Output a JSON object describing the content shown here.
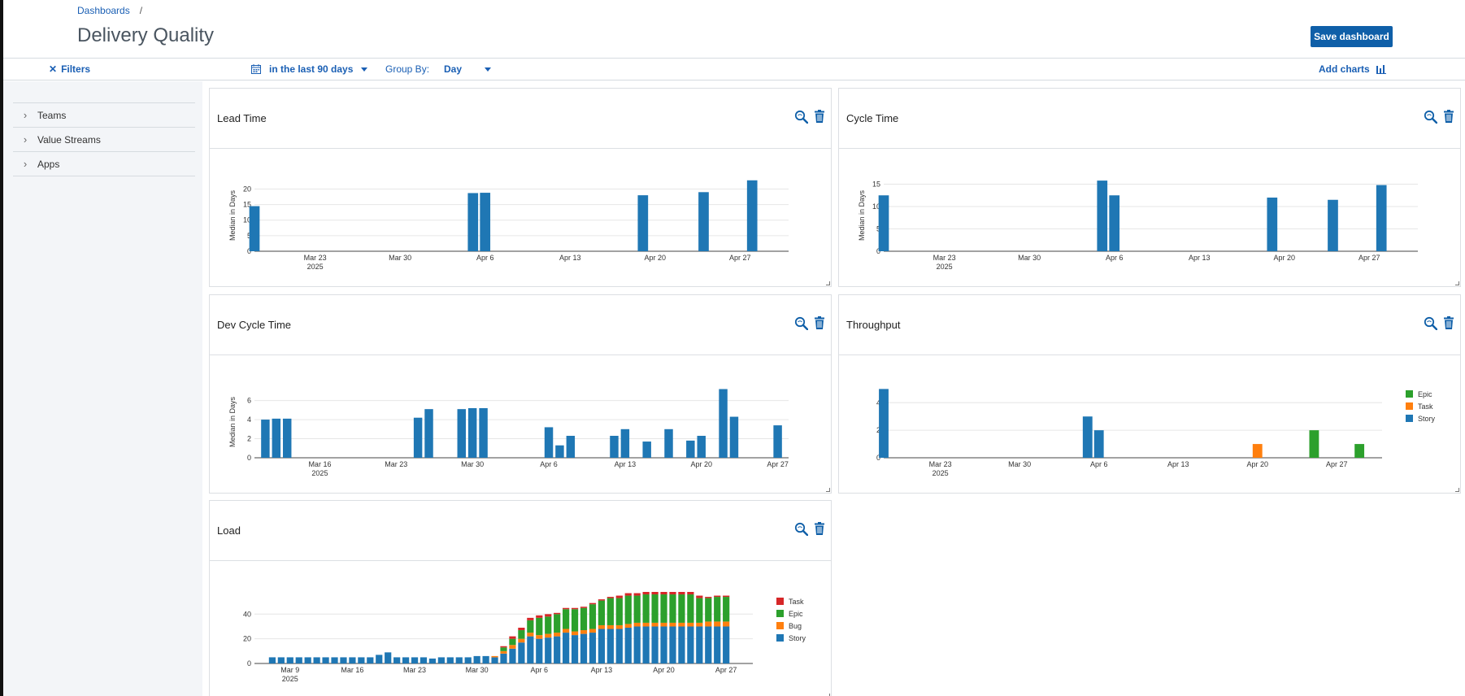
{
  "breadcrumb": {
    "root": "Dashboards",
    "separator": "/"
  },
  "page": {
    "title": "Delivery Quality"
  },
  "header": {
    "save_label": "Save dashboard"
  },
  "filter_bar": {
    "filters_label": "Filters",
    "date_range": "in the last 90 days",
    "group_by_label": "Group By:",
    "group_by_value": "Day",
    "add_charts_label": "Add charts"
  },
  "sidebar": {
    "items": [
      {
        "label": "Teams"
      },
      {
        "label": "Value Streams"
      },
      {
        "label": "Apps"
      }
    ]
  },
  "colors": {
    "accent": "#0f5fa8",
    "story": "#1f77b4",
    "task_throughput": "#ff7f0e",
    "epic": "#2ca02c",
    "bug": "#ff7f0e",
    "task_load": "#d62728"
  },
  "panels": [
    {
      "title": "Lead Time"
    },
    {
      "title": "Cycle Time"
    },
    {
      "title": "Dev Cycle Time"
    },
    {
      "title": "Throughput"
    },
    {
      "title": "Load"
    }
  ],
  "chart_data": [
    {
      "type": "bar",
      "title": "Lead Time",
      "ylabel": "Median in Days",
      "xlim": [
        "2025-03-18",
        "2025-05-01"
      ],
      "ylim": [
        0,
        23
      ],
      "yticks": [
        0,
        5,
        10,
        15,
        20
      ],
      "xticks": [
        "Mar 23\n2025",
        "Mar 30",
        "Apr 6",
        "Apr 13",
        "Apr 20",
        "Apr 27"
      ],
      "x": [
        "2025-03-18",
        "2025-04-05",
        "2025-04-06",
        "2025-04-19",
        "2025-04-24",
        "2025-04-28"
      ],
      "values": [
        14.5,
        18.7,
        18.8,
        18,
        19,
        22.8
      ]
    },
    {
      "type": "bar",
      "title": "Cycle Time",
      "ylabel": "Median in Days",
      "xlim": [
        "2025-03-18",
        "2025-05-01"
      ],
      "ylim": [
        0,
        16
      ],
      "yticks": [
        0,
        5,
        10,
        15
      ],
      "xticks": [
        "Mar 23\n2025",
        "Mar 30",
        "Apr 6",
        "Apr 13",
        "Apr 20",
        "Apr 27"
      ],
      "x": [
        "2025-03-18",
        "2025-04-05",
        "2025-04-06",
        "2025-04-19",
        "2025-04-24",
        "2025-04-28"
      ],
      "values": [
        12.5,
        15.8,
        12.5,
        12,
        11.5,
        14.8
      ]
    },
    {
      "type": "bar",
      "title": "Dev Cycle Time",
      "ylabel": "Median in Days",
      "xlim": [
        "2025-03-10",
        "2025-04-28"
      ],
      "ylim": [
        0,
        7.5
      ],
      "yticks": [
        0,
        2,
        4,
        6
      ],
      "xticks": [
        "Mar 16\n2025",
        "Mar 23",
        "Mar 30",
        "Apr 6",
        "Apr 13",
        "Apr 20",
        "Apr 27"
      ],
      "x": [
        "2025-03-11",
        "2025-03-12",
        "2025-03-13",
        "2025-03-25",
        "2025-03-26",
        "2025-03-29",
        "2025-03-30",
        "2025-03-31",
        "2025-04-06",
        "2025-04-07",
        "2025-04-08",
        "2025-04-12",
        "2025-04-13",
        "2025-04-15",
        "2025-04-17",
        "2025-04-19",
        "2025-04-20",
        "2025-04-22",
        "2025-04-23",
        "2025-04-27"
      ],
      "values": [
        4,
        4.1,
        4.1,
        4.2,
        5.1,
        5.1,
        5.2,
        5.2,
        3.2,
        1.3,
        2.3,
        2.3,
        3,
        1.7,
        3,
        1.8,
        2.3,
        7.2,
        4.3,
        3.4
      ]
    },
    {
      "type": "bar",
      "title": "Throughput",
      "xlim": [
        "2025-03-18",
        "2025-05-01"
      ],
      "ylim": [
        0,
        5.2
      ],
      "yticks": [
        0,
        2,
        4
      ],
      "xticks": [
        "Mar 23\n2025",
        "Mar 30",
        "Apr 6",
        "Apr 13",
        "Apr 20",
        "Apr 27"
      ],
      "legend": {
        "placement": "right",
        "entries": [
          "Epic",
          "Task",
          "Story"
        ]
      },
      "series": [
        {
          "name": "Story",
          "x": [
            "2025-03-18",
            "2025-04-05",
            "2025-04-06"
          ],
          "values": [
            5,
            3,
            2
          ]
        },
        {
          "name": "Task",
          "x": [
            "2025-04-20"
          ],
          "values": [
            1
          ]
        },
        {
          "name": "Epic",
          "x": [
            "2025-04-25",
            "2025-04-29"
          ],
          "values": [
            2,
            1
          ]
        }
      ]
    },
    {
      "type": "bar",
      "stacked": true,
      "title": "Load",
      "xlim": [
        "2025-03-05",
        "2025-04-30"
      ],
      "ylim": [
        0,
        58
      ],
      "yticks": [
        0,
        20,
        40
      ],
      "xticks": [
        "Mar 9\n2025",
        "Mar 16",
        "Mar 23",
        "Mar 30",
        "Apr 6",
        "Apr 13",
        "Apr 20",
        "Apr 27"
      ],
      "legend": {
        "placement": "right",
        "entries": [
          "Task",
          "Epic",
          "Bug",
          "Story"
        ]
      },
      "x_start": "2025-03-07",
      "series": [
        {
          "name": "Story",
          "values": [
            5,
            5,
            5,
            5,
            5,
            5,
            5,
            5,
            5,
            5,
            5,
            5,
            7,
            9,
            5,
            5,
            5,
            5,
            4,
            5,
            5,
            5,
            5,
            6,
            6,
            5,
            8,
            12,
            17,
            22,
            20,
            21,
            22,
            25,
            23,
            24,
            25,
            28,
            28,
            28,
            29,
            30,
            30,
            30,
            30,
            30,
            30,
            30,
            30,
            30,
            30,
            30
          ]
        },
        {
          "name": "Bug",
          "values": [
            0,
            0,
            0,
            0,
            0,
            0,
            0,
            0,
            0,
            0,
            0,
            0,
            0,
            0,
            0,
            0,
            0,
            0,
            0,
            0,
            0,
            0,
            0,
            0,
            0,
            1,
            2,
            3,
            3,
            3,
            3,
            3,
            3,
            3,
            3,
            3,
            3,
            3,
            3,
            3,
            3,
            3,
            3,
            3,
            3,
            3,
            3,
            3,
            3,
            4,
            4,
            4
          ]
        },
        {
          "name": "Epic",
          "values": [
            0,
            0,
            0,
            0,
            0,
            0,
            0,
            0,
            0,
            0,
            0,
            0,
            0,
            0,
            0,
            0,
            0,
            0,
            0,
            0,
            0,
            0,
            0,
            0,
            0,
            0,
            3,
            5,
            7,
            10,
            14,
            14,
            15,
            16,
            18,
            18,
            20,
            20,
            22,
            22,
            23,
            22,
            23,
            23,
            23,
            23,
            23,
            23,
            20,
            19,
            20,
            20
          ]
        },
        {
          "name": "Task",
          "values": [
            0,
            0,
            0,
            0,
            0,
            0,
            0,
            0,
            0,
            0,
            0,
            0,
            0,
            0,
            0,
            0,
            0,
            0,
            0,
            0,
            0,
            0,
            0,
            0,
            0,
            0,
            1,
            2,
            2,
            2,
            2,
            2,
            1,
            1,
            1,
            1,
            1,
            1,
            1,
            2,
            2,
            2,
            2,
            2,
            2,
            2,
            2,
            2,
            2,
            1,
            1,
            1
          ]
        }
      ]
    }
  ]
}
